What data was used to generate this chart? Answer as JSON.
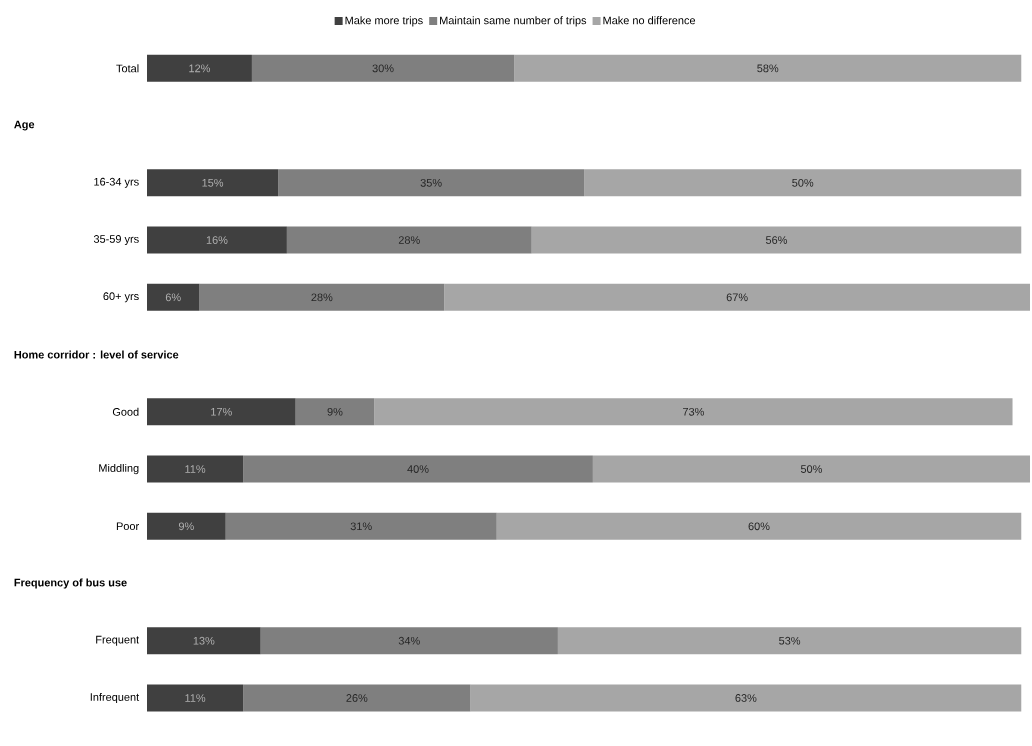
{
  "chart_data": {
    "type": "bar",
    "orientation": "horizontal",
    "stacked": true,
    "legend": "top",
    "categories": [
      "Total",
      null,
      "16-34 yrs",
      "35-59 yrs",
      "60+ yrs",
      null,
      "Good",
      "Middling",
      "Poor",
      null,
      "Frequent",
      "Infrequent"
    ],
    "annotations": [
      "Age",
      "Home corridor : level of service",
      "Frequency of bus use"
    ],
    "series": [
      {
        "name": "Make more trips",
        "color": "#404040",
        "values": [
          12,
          null,
          15,
          16,
          6,
          null,
          17,
          11,
          9,
          null,
          13,
          11
        ],
        "value_labels": [
          "12%",
          null,
          "15%",
          "16%",
          "6%",
          null,
          "17%",
          "11%",
          "9%",
          null,
          "13%",
          "11%"
        ]
      },
      {
        "name": "Maintain same number of trips",
        "color": "#7f7f7f",
        "values": [
          30,
          null,
          35,
          28,
          28,
          null,
          9,
          40,
          31,
          null,
          34,
          26
        ],
        "value_labels": [
          "30%",
          null,
          "35%",
          "28%",
          "28%",
          null,
          "9%",
          "40%",
          "31%",
          null,
          "34%",
          "26%"
        ]
      },
      {
        "name": "Make no difference",
        "color": "#a6a6a6",
        "values": [
          58,
          null,
          50,
          56,
          67,
          null,
          73,
          50,
          60,
          null,
          53,
          63
        ],
        "value_labels": [
          "58%",
          null,
          "50%",
          "56%",
          "67%",
          null,
          "73%",
          "50%",
          "60%",
          null,
          "53%",
          "63%"
        ]
      }
    ]
  }
}
